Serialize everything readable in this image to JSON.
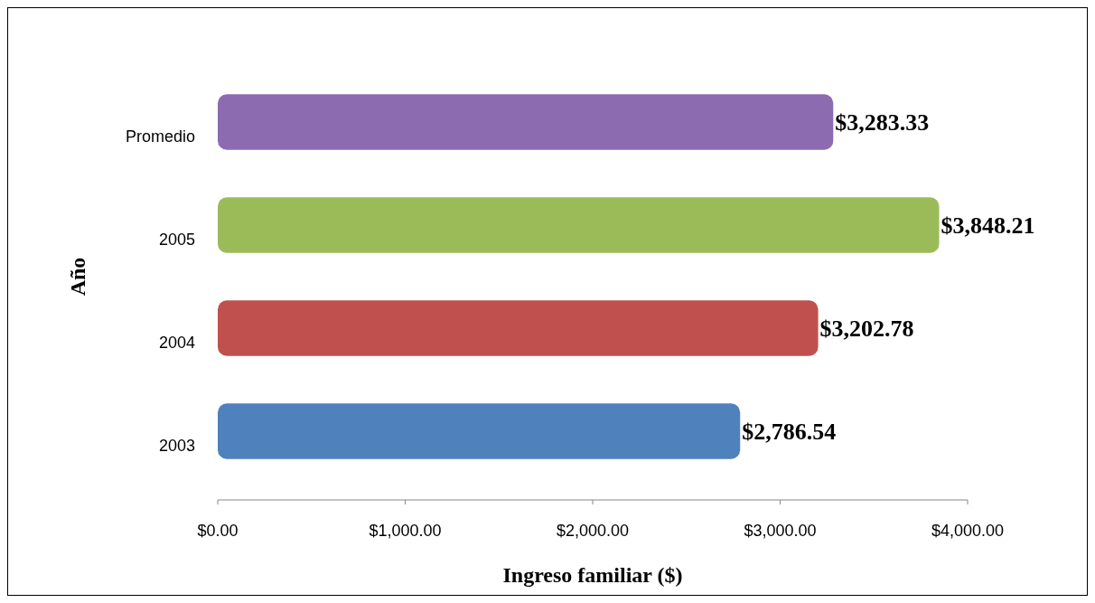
{
  "chart_data": {
    "type": "bar",
    "orientation": "horizontal",
    "xlabel": "Ingreso familiar ($)",
    "ylabel": "Año",
    "categories": [
      "Promedio",
      "2005",
      "2004",
      "2003"
    ],
    "values": [
      3283.33,
      3848.21,
      3202.78,
      2786.54
    ],
    "colors": [
      "#8c6bb1",
      "#9bbb59",
      "#c0504d",
      "#4f81bd"
    ],
    "value_labels": [
      "$3,283.33",
      "$3,848.21",
      "$3,202.78",
      "$2,786.54"
    ],
    "xlim": [
      0,
      4000
    ],
    "xticks": [
      {
        "value": 0,
        "label": "$0.00"
      },
      {
        "value": 1000,
        "label": "$1,000.00"
      },
      {
        "value": 2000,
        "label": "$2,000.00"
      },
      {
        "value": 3000,
        "label": "$3,000.00"
      },
      {
        "value": 4000,
        "label": "$4,000.00"
      }
    ],
    "tick_labels": true
  }
}
